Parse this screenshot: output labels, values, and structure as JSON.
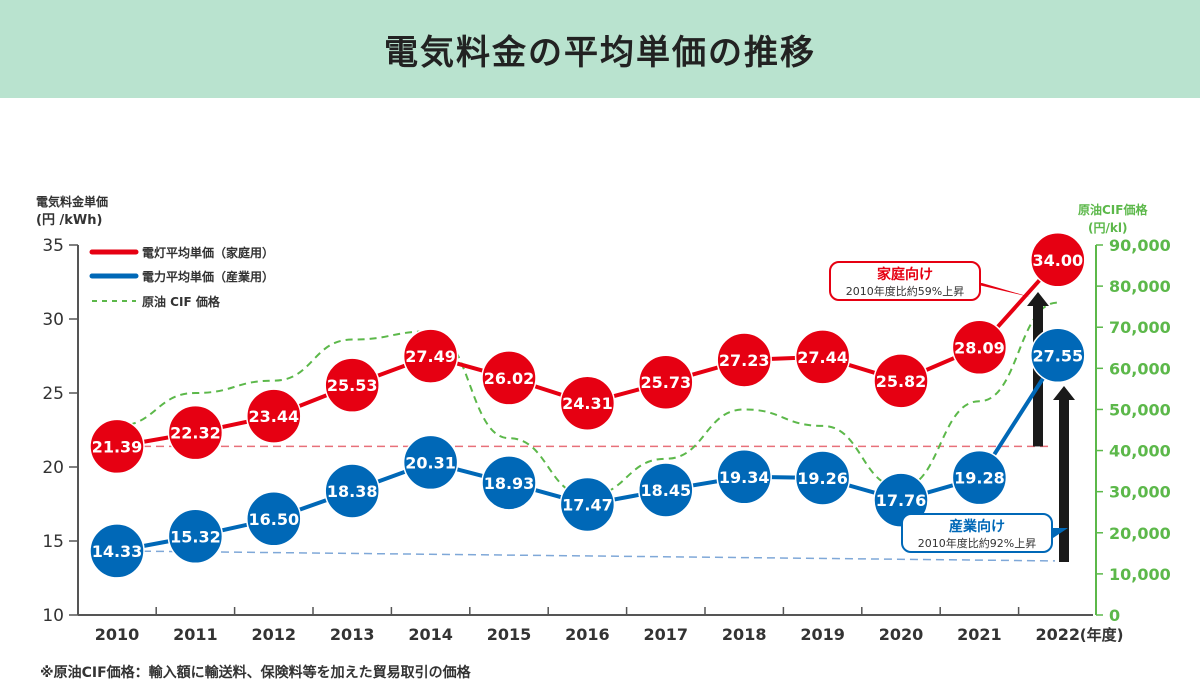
{
  "title": "電気料金の平均単価の推移",
  "footnote": "※原油CIF価格：輸入額に輸送料、保険料等を加えた貿易取引の価格",
  "chart_data": {
    "type": "line",
    "categories": [
      "2010",
      "2011",
      "2012",
      "2013",
      "2014",
      "2015",
      "2016",
      "2017",
      "2018",
      "2019",
      "2020",
      "2021",
      "2022"
    ],
    "x_unit_label": "(年度)",
    "y_left": {
      "label_line1": "電気料金単価",
      "label_line2": "(円 /kWh)",
      "lim": [
        10,
        35
      ],
      "ticks": [
        "10",
        "15",
        "20",
        "25",
        "30",
        "35"
      ]
    },
    "y_right": {
      "label_line1": "原油CIF価格",
      "label_line2": "(円/kl)",
      "lim": [
        0,
        90000
      ],
      "ticks": [
        "0",
        "10,000",
        "20,000",
        "30,000",
        "40,000",
        "50,000",
        "60,000",
        "70,000",
        "80,000",
        "90,000"
      ]
    },
    "series": [
      {
        "name": "電灯平均単価（家庭用）",
        "axis": "left",
        "color": "#e60012",
        "values": [
          21.39,
          22.32,
          23.44,
          25.53,
          27.49,
          26.02,
          24.31,
          25.73,
          27.23,
          27.44,
          25.82,
          28.09,
          34.0
        ],
        "labels": [
          "21.39",
          "22.32",
          "23.44",
          "25.53",
          "27.49",
          "26.02",
          "24.31",
          "25.73",
          "27.23",
          "27.44",
          "25.82",
          "28.09",
          "34.00"
        ]
      },
      {
        "name": "電力平均単価（産業用）",
        "axis": "left",
        "color": "#0068b7",
        "values": [
          14.33,
          15.32,
          16.5,
          18.38,
          20.31,
          18.93,
          17.47,
          18.45,
          19.34,
          19.26,
          17.76,
          19.28,
          27.55
        ],
        "labels": [
          "14.33",
          "15.32",
          "16.50",
          "18.38",
          "20.31",
          "18.93",
          "17.47",
          "18.45",
          "19.34",
          "19.26",
          "17.76",
          "19.28",
          "27.55"
        ]
      },
      {
        "name": "原油 CIF 価格",
        "axis": "right",
        "color": "#5cb84a",
        "style": "dashed",
        "values": [
          46000,
          54000,
          57000,
          67000,
          69000,
          43000,
          29000,
          38000,
          50000,
          46000,
          31000,
          52000,
          76000
        ]
      }
    ],
    "annotations": [
      {
        "title": "家庭向け",
        "text": "2010年度比約59%上昇",
        "color": "#e60012"
      },
      {
        "title": "産業向け",
        "text": "2010年度比約92%上昇",
        "color": "#0068b7"
      }
    ],
    "legend": "top-left",
    "grid": false
  }
}
